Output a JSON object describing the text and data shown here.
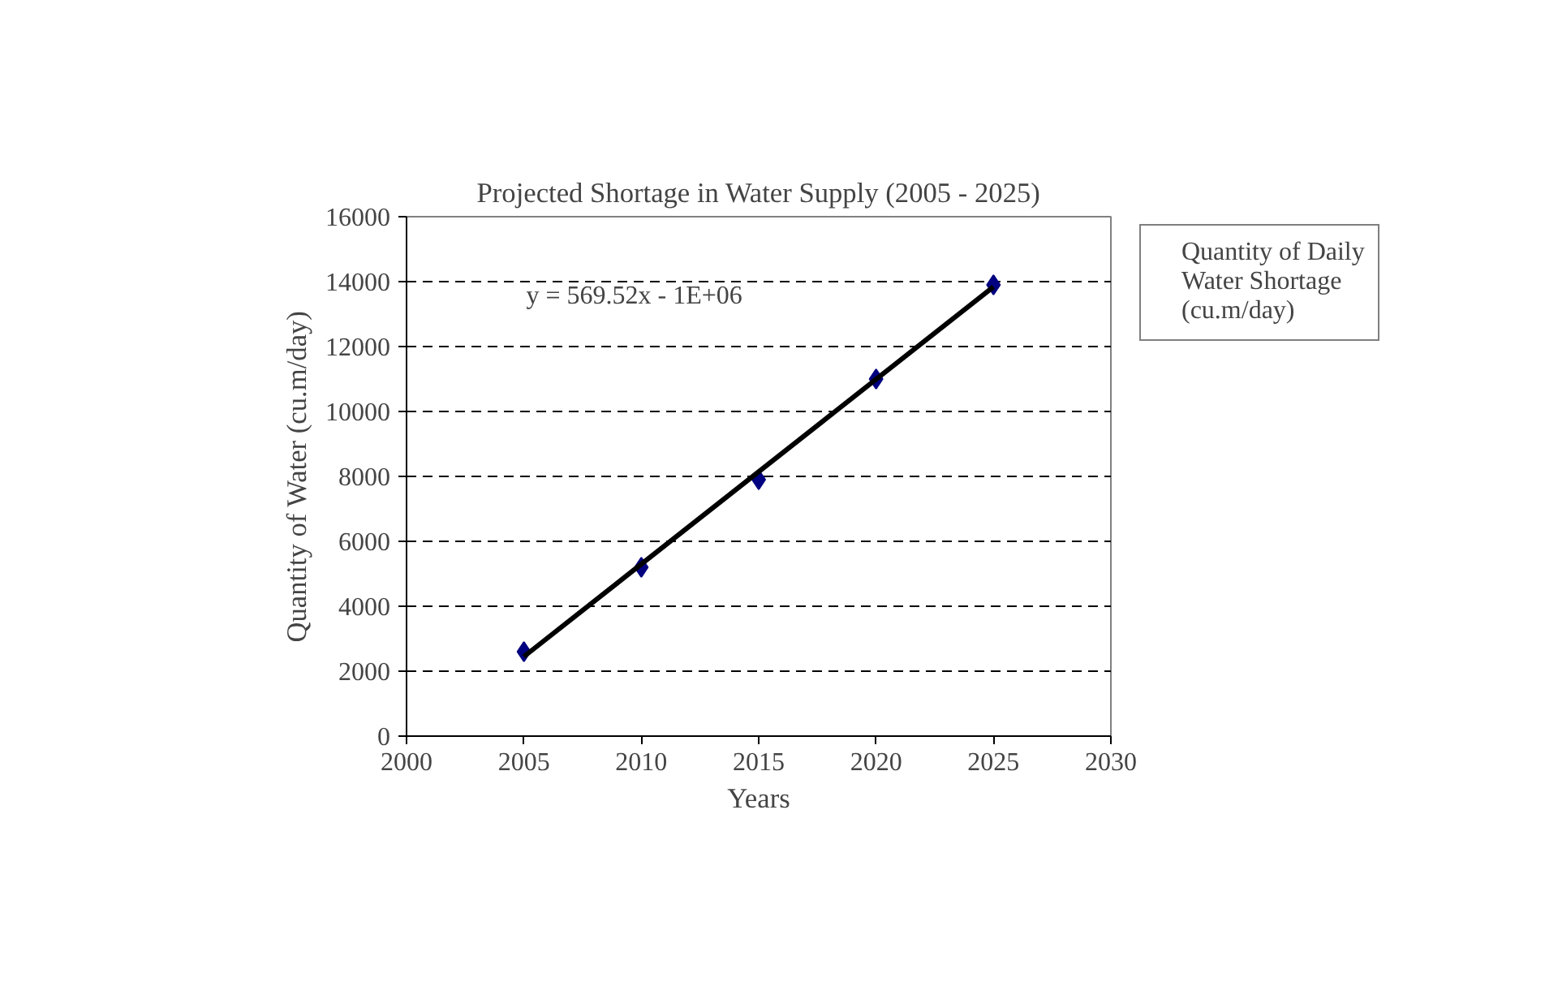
{
  "chart_data": {
    "type": "scatter",
    "title": "Projected Shortage in Water Supply (2005 - 2025)",
    "xlabel": "Years",
    "ylabel": "Quantity of Water (cu.m/day)",
    "series": [
      {
        "name": "Quantity of Daily Water Shortage (cu.m/day)",
        "color": "#000080",
        "x": [
          2005,
          2010,
          2015,
          2020,
          2025
        ],
        "values": [
          2600,
          5200,
          7900,
          11000,
          13900
        ],
        "marker": "diamond"
      },
      {
        "type": "line",
        "color": "#000000",
        "x": [
          2005,
          2025
        ],
        "values": [
          2450,
          13840
        ],
        "marker": "none"
      }
    ],
    "annotations": [
      "y = 569.52x - 1E+06"
    ],
    "xlim": [
      2000,
      2030
    ],
    "xticks": [
      2000,
      2005,
      2010,
      2015,
      2020,
      2025,
      2030
    ],
    "ylim": [
      0,
      16000
    ],
    "yticks": [
      0,
      2000,
      4000,
      6000,
      8000,
      10000,
      12000,
      14000,
      16000
    ],
    "grid": "y",
    "legend": "right"
  }
}
